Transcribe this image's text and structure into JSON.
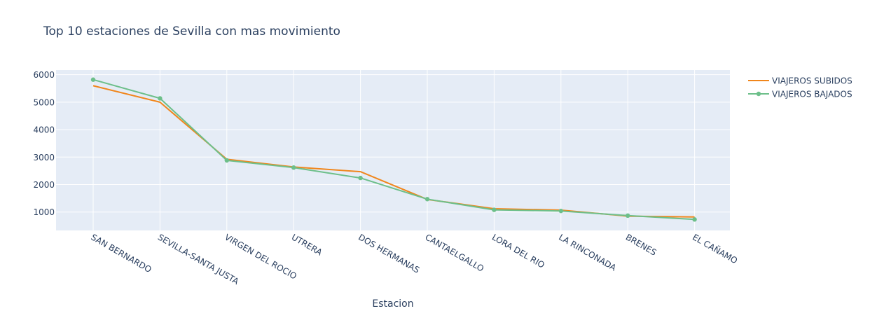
{
  "chart_data": {
    "type": "line",
    "title": "Top 10 estaciones de Sevilla con mas movimiento",
    "xlabel": "Estacion",
    "ylabel": "",
    "categories": [
      "SAN BERNARDO",
      "SEVILLA-SANTA JUSTA",
      "VIRGEN DEL ROCIO",
      "UTRERA",
      "DOS HERMANAS",
      "CANTAELGALLO",
      "LORA DEL RIO",
      "LA RINCONADA",
      "BRENES",
      "EL CAÑAMO"
    ],
    "ylim": [
      330,
      6170
    ],
    "yticks": [
      1000,
      2000,
      3000,
      4000,
      5000,
      6000
    ],
    "yticklabels": [
      "1000",
      "2000",
      "3000",
      "4000",
      "5000",
      "6000"
    ],
    "grid": true,
    "legend_position": "top-right",
    "series": [
      {
        "name": "VIAJEROS SUBIDOS",
        "color": "#f0861c",
        "markers": false,
        "values": [
          5600,
          5000,
          2920,
          2640,
          2470,
          1460,
          1120,
          1070,
          850,
          820
        ]
      },
      {
        "name": "VIAJEROS BAJADOS",
        "color": "#6dbf8a",
        "markers": true,
        "values": [
          5820,
          5140,
          2880,
          2620,
          2240,
          1470,
          1080,
          1040,
          870,
          730
        ]
      }
    ],
    "colors": {
      "plot_bg": "#e5ecf6",
      "grid": "#ffffff",
      "text": "#2a3f5f"
    }
  }
}
